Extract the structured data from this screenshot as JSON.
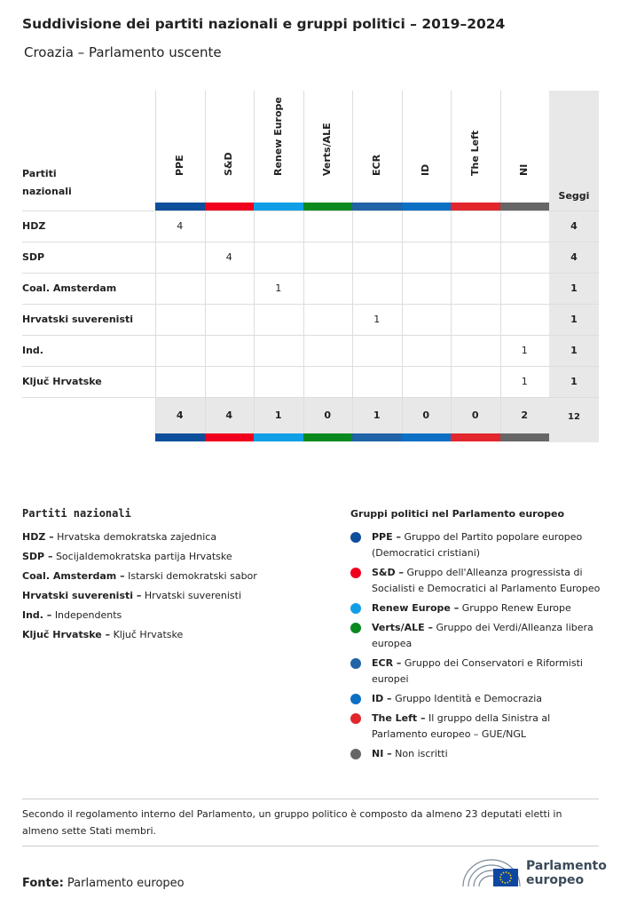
{
  "header": {
    "title": "Suddivisione dei partiti nazionali e gruppi politici – 2019–2024",
    "subtitle": "Croazia – Parlamento uscente"
  },
  "table": {
    "corner": "Partiti nazionali",
    "seats_header": "Seggi",
    "groups": [
      {
        "name": "PPE",
        "color": "#0d4f9a"
      },
      {
        "name": "S&D",
        "color": "#f0001c"
      },
      {
        "name": "Renew Europe",
        "color": "#109fe6"
      },
      {
        "name": "Verts/ALE",
        "color": "#0a8a1e"
      },
      {
        "name": "ECR",
        "color": "#2063a6"
      },
      {
        "name": "ID",
        "color": "#0b6fc4"
      },
      {
        "name": "The Left",
        "color": "#e2262c"
      },
      {
        "name": "NI",
        "color": "#666666"
      }
    ],
    "rows": [
      {
        "party": "HDZ",
        "cells": [
          4,
          null,
          null,
          null,
          null,
          null,
          null,
          null
        ],
        "total": 4
      },
      {
        "party": "SDP",
        "cells": [
          null,
          4,
          null,
          null,
          null,
          null,
          null,
          null
        ],
        "total": 4
      },
      {
        "party": "Coal. Amsterdam",
        "cells": [
          null,
          null,
          1,
          null,
          null,
          null,
          null,
          null
        ],
        "total": 1
      },
      {
        "party": "Hrvatski suverenisti",
        "cells": [
          null,
          null,
          null,
          null,
          1,
          null,
          null,
          null
        ],
        "total": 1
      },
      {
        "party": "Ind.",
        "cells": [
          null,
          null,
          null,
          null,
          null,
          null,
          null,
          1
        ],
        "total": 1
      },
      {
        "party": "Ključ Hrvatske",
        "cells": [
          null,
          null,
          null,
          null,
          null,
          null,
          null,
          1
        ],
        "total": 1
      }
    ],
    "totals": [
      4,
      4,
      1,
      0,
      1,
      0,
      0,
      2
    ],
    "grand_total": 12
  },
  "legend_parties": {
    "title": "Partiti nazionali",
    "items": [
      {
        "abbr": "HDZ –",
        "name": "Hrvatska demokratska zajednica"
      },
      {
        "abbr": "SDP –",
        "name": "Socijaldemokratska partija Hrvatske"
      },
      {
        "abbr": "Coal. Amsterdam –",
        "name": "Istarski demokratski sabor"
      },
      {
        "abbr": "Hrvatski suverenisti –",
        "name": "Hrvatski suverenisti"
      },
      {
        "abbr": "Ind. –",
        "name": "Independents"
      },
      {
        "abbr": "Ključ Hrvatske –",
        "name": "Ključ Hrvatske"
      }
    ]
  },
  "legend_groups": {
    "title": "Gruppi politici nel Parlamento europeo",
    "items": [
      {
        "abbr": "PPE –",
        "name": "Gruppo del Partito popolare europeo (Democratici cristiani)",
        "color": "#0d4f9a"
      },
      {
        "abbr": "S&D –",
        "name": "Gruppo dell'Alleanza progressista di Socialisti e Democratici al Parlamento Europeo",
        "color": "#f0001c"
      },
      {
        "abbr": "Renew Europe –",
        "name": "Gruppo Renew Europe",
        "color": "#109fe6"
      },
      {
        "abbr": "Verts/ALE –",
        "name": "Gruppo dei Verdi/Alleanza libera europea",
        "color": "#0a8a1e"
      },
      {
        "abbr": "ECR –",
        "name": "Gruppo dei Conservatori e Riformisti europei",
        "color": "#2063a6"
      },
      {
        "abbr": "ID –",
        "name": "Gruppo Identità e Democrazia",
        "color": "#0b6fc4"
      },
      {
        "abbr": "The Left –",
        "name": "Il gruppo della Sinistra al Parlamento europeo – GUE/NGL",
        "color": "#e2262c"
      },
      {
        "abbr": "NI –",
        "name": "Non iscritti",
        "color": "#666666"
      }
    ]
  },
  "note": "Secondo il regolamento interno del Parlamento, un gruppo politico è composto da almeno 23 deputati eletti in almeno sette Stati membri.",
  "source": {
    "label": "Fonte:",
    "text": "Parlamento europeo"
  },
  "logo": {
    "text": "Parlamento europeo"
  }
}
